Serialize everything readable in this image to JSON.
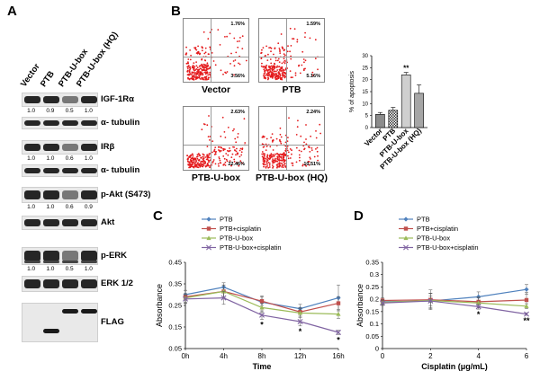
{
  "panels": {
    "a": "A",
    "b": "B",
    "c": "C",
    "d": "D"
  },
  "panel_a": {
    "lanes": [
      "Vector",
      "PTB",
      "PTB-U-box",
      "PTB-U-box (HQ)"
    ],
    "blots": [
      {
        "label": "IGF-1Rα",
        "quant": [
          "1.0",
          "0.9",
          "0.5",
          "1.0"
        ]
      },
      {
        "label": "α- tubulin",
        "quant": []
      },
      {
        "label": "IRβ",
        "quant": [
          "1.0",
          "1.0",
          "0.6",
          "1.0"
        ]
      },
      {
        "label": "α- tubulin",
        "quant": []
      },
      {
        "label": "p-Akt (S473)",
        "quant": [
          "1.0",
          "1.0",
          "0.6",
          "0.9"
        ]
      },
      {
        "label": "Akt",
        "quant": []
      },
      {
        "label": "p-ERK",
        "quant": [
          "1.0",
          "1.0",
          "0.5",
          "1.0"
        ]
      },
      {
        "label": "ERK 1/2",
        "quant": []
      },
      {
        "label": "FLAG",
        "quant": []
      }
    ]
  },
  "panel_b": {
    "flow_plots": [
      {
        "label": "Vector",
        "upper_right": "1.76%",
        "lower_right": "3.56%"
      },
      {
        "label": "PTB",
        "upper_right": "1.59%",
        "lower_right": "5.16%"
      },
      {
        "label": "PTB-U-box",
        "upper_right": "2.63%",
        "lower_right": "22.46%"
      },
      {
        "label": "PTB-U-box (HQ)",
        "upper_right": "2.24%",
        "lower_right": "10.51%"
      }
    ]
  },
  "chart_data": [
    {
      "type": "bar",
      "panel": "B",
      "categories": [
        "Vector",
        "PTB",
        "PTB-U-box",
        "PTB-U-box (HQ)"
      ],
      "values": [
        5.5,
        7.2,
        22.0,
        14.3
      ],
      "errors": [
        0.8,
        1.2,
        1.0,
        3.5
      ],
      "ylabel": "% of apoptosis",
      "ylim": [
        0,
        30
      ],
      "yticks": [
        0,
        5,
        10,
        15,
        20,
        25,
        30
      ],
      "annotations": [
        {
          "category": "PTB-U-box",
          "text": "**"
        }
      ],
      "bar_colors": [
        "#8c8c8c",
        "#ffffff",
        "#cfcfcf",
        "#a6a6a6"
      ]
    },
    {
      "type": "line",
      "panel": "C",
      "x": [
        "0h",
        "4h",
        "8h",
        "12h",
        "16h"
      ],
      "xlabel": "Time",
      "ylabel": "Absorbance",
      "ylim": [
        0.05,
        0.45
      ],
      "yticks": [
        "0.05",
        "0.15",
        "0.25",
        "0.35",
        "0.45"
      ],
      "series": [
        {
          "name": "PTB",
          "color": "#4f81bd",
          "marker": "diamond",
          "values": [
            0.3,
            0.335,
            0.265,
            0.235,
            0.285
          ],
          "errors": [
            0.02,
            0.02,
            0.03,
            0.02,
            0.06
          ]
        },
        {
          "name": "PTB+cisplatin",
          "color": "#c0504d",
          "marker": "square",
          "values": [
            0.29,
            0.315,
            0.27,
            0.22,
            0.26
          ],
          "errors": [
            0.03,
            0.03,
            0.02,
            0.02,
            0.03
          ]
        },
        {
          "name": "PTB-U-box",
          "color": "#9bbb59",
          "marker": "triangle",
          "values": [
            0.285,
            0.315,
            0.24,
            0.215,
            0.21
          ],
          "errors": [
            0.02,
            0.03,
            0.02,
            0.02,
            0.02
          ]
        },
        {
          "name": "PTB-U-box+cisplatin",
          "color": "#8064a2",
          "marker": "x",
          "values": [
            0.28,
            0.285,
            0.205,
            0.175,
            0.125
          ],
          "errors": [
            0.02,
            0.03,
            0.02,
            0.02,
            0.01
          ]
        }
      ],
      "annotations": [
        {
          "x": "8h",
          "text": "*"
        },
        {
          "x": "12h",
          "text": "*"
        },
        {
          "x": "16h",
          "text": "*"
        }
      ],
      "legend": "top"
    },
    {
      "type": "line",
      "panel": "D",
      "x": [
        0,
        2,
        4,
        6
      ],
      "xlabel": "Cisplatin (μg/mL)",
      "ylabel": "Absorbance",
      "ylim": [
        0,
        0.35
      ],
      "yticks": [
        "0",
        "0.05",
        "0.1",
        "0.15",
        "0.2",
        "0.25",
        "0.3",
        "0.35"
      ],
      "xticks": [
        "0",
        "2",
        "4",
        "6"
      ],
      "series": [
        {
          "name": "PTB",
          "color": "#4f81bd",
          "marker": "diamond",
          "values": [
            0.19,
            0.193,
            0.21,
            0.24
          ],
          "errors": [
            0.01,
            0.03,
            0.02,
            0.02
          ]
        },
        {
          "name": "PTB+cisplatin",
          "color": "#c0504d",
          "marker": "square",
          "values": [
            0.195,
            0.198,
            0.19,
            0.197
          ],
          "errors": [
            0.01,
            0.04,
            0.02,
            0.03
          ]
        },
        {
          "name": "PTB-U-box",
          "color": "#9bbb59",
          "marker": "triangle",
          "values": [
            0.188,
            0.195,
            0.185,
            0.172
          ],
          "errors": [
            0.01,
            0.03,
            0.02,
            0.01
          ]
        },
        {
          "name": "PTB-U-box+cisplatin",
          "color": "#8064a2",
          "marker": "x",
          "values": [
            0.185,
            0.193,
            0.17,
            0.14
          ],
          "errors": [
            0.01,
            0.02,
            0.01,
            0.005
          ]
        }
      ],
      "annotations": [
        {
          "x": 4,
          "text": "*"
        },
        {
          "x": 6,
          "text": "**"
        }
      ],
      "legend": "top"
    }
  ]
}
